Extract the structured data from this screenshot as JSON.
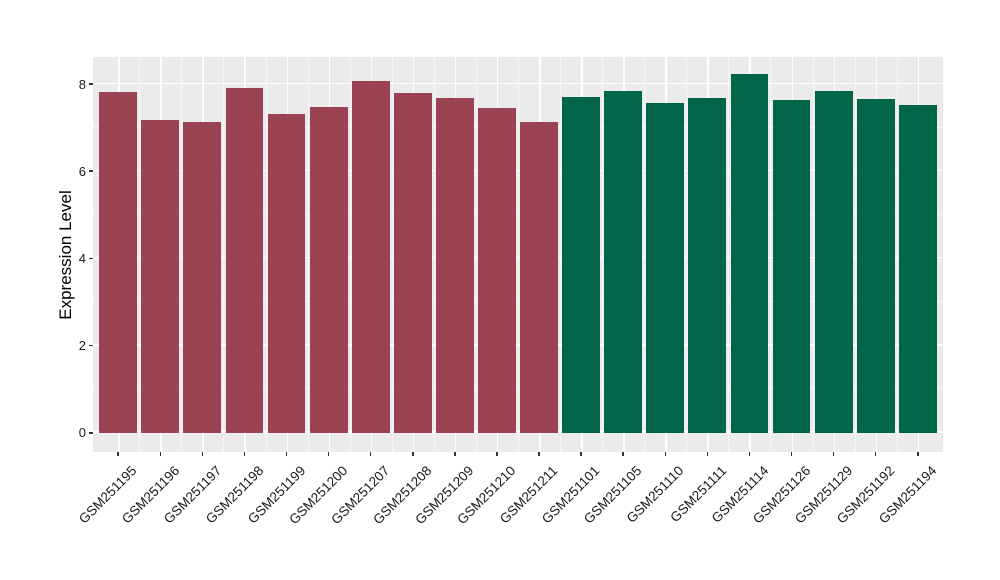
{
  "chart_data": {
    "type": "bar",
    "title": "",
    "xlabel": "",
    "ylabel": "Expression Level",
    "legend_position": "none",
    "grid": true,
    "panel_background": "#EBEBEB",
    "grid_color": "#FFFFFF",
    "axis_text_color": "#1a1a1a",
    "ylim": [
      0,
      8.62
    ],
    "y_domain": [
      -0.44,
      8.62
    ],
    "y_major_ticks": [
      0,
      2,
      4,
      6,
      8
    ],
    "y_minor_ticks": [
      1,
      3,
      5,
      7
    ],
    "group_colors": {
      "groupA": "#9A4453",
      "groupB": "#006647"
    },
    "bars": [
      {
        "label": "GSM251195",
        "value": 7.81,
        "group": "groupA"
      },
      {
        "label": "GSM251196",
        "value": 7.17,
        "group": "groupA"
      },
      {
        "label": "GSM251197",
        "value": 7.14,
        "group": "groupA"
      },
      {
        "label": "GSM251198",
        "value": 7.92,
        "group": "groupA"
      },
      {
        "label": "GSM251199",
        "value": 7.31,
        "group": "groupA"
      },
      {
        "label": "GSM251200",
        "value": 7.48,
        "group": "groupA"
      },
      {
        "label": "GSM251207",
        "value": 8.08,
        "group": "groupA"
      },
      {
        "label": "GSM251208",
        "value": 7.79,
        "group": "groupA"
      },
      {
        "label": "GSM251209",
        "value": 7.68,
        "group": "groupA"
      },
      {
        "label": "GSM251210",
        "value": 7.46,
        "group": "groupA"
      },
      {
        "label": "GSM251211",
        "value": 7.13,
        "group": "groupA"
      },
      {
        "label": "GSM251101",
        "value": 7.71,
        "group": "groupB"
      },
      {
        "label": "GSM251105",
        "value": 7.85,
        "group": "groupB"
      },
      {
        "label": "GSM251110",
        "value": 7.57,
        "group": "groupB"
      },
      {
        "label": "GSM251111",
        "value": 7.68,
        "group": "groupB"
      },
      {
        "label": "GSM251114",
        "value": 8.22,
        "group": "groupB"
      },
      {
        "label": "GSM251126",
        "value": 7.64,
        "group": "groupB"
      },
      {
        "label": "GSM251129",
        "value": 7.85,
        "group": "groupB"
      },
      {
        "label": "GSM251192",
        "value": 7.66,
        "group": "groupB"
      },
      {
        "label": "GSM251194",
        "value": 7.52,
        "group": "groupB"
      }
    ]
  }
}
